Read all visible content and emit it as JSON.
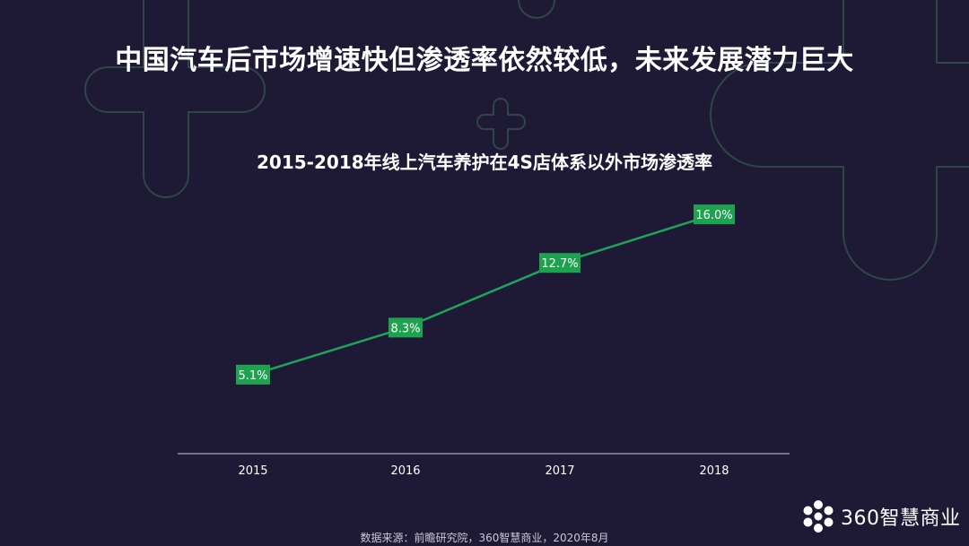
{
  "headline": "中国汽车后市场增速快但渗透率依然较低，未来发展潜力巨大",
  "source_note": "数据来源：前瞻研究院，360智慧商业，2020年8月",
  "brand": {
    "name": "360智慧商业",
    "icon": "flower-logo-icon"
  },
  "colors": {
    "background": "#1e1a35",
    "line": "#1fa35a",
    "label_bg": "#1fa24f",
    "decoration": "#3b6e55"
  },
  "chart_data": {
    "type": "line",
    "title": "2015-2018年线上汽车养护在4S店体系以外市场渗透率",
    "categories": [
      "2015",
      "2016",
      "2017",
      "2018"
    ],
    "series": [
      {
        "values": [
          5.1,
          8.3,
          12.7,
          16.0
        ]
      }
    ],
    "data_labels": [
      "5.1%",
      "8.3%",
      "12.7%",
      "16.0%"
    ],
    "grid": false,
    "legend": "none",
    "y_axis_visible": false
  }
}
